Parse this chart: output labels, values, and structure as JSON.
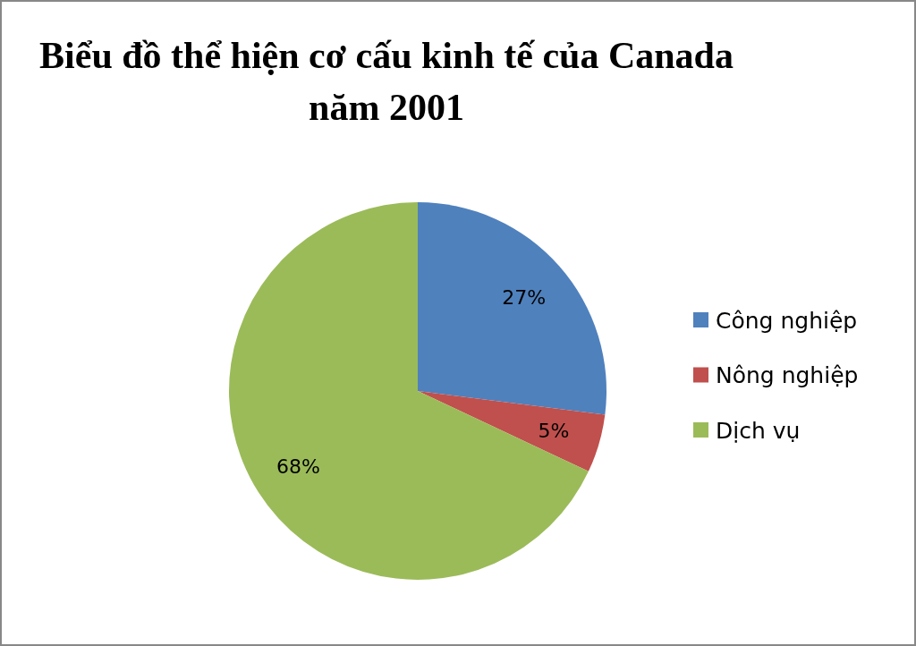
{
  "chart_data": {
    "type": "pie",
    "title": "Biểu đồ thể hiện cơ cấu kinh tế của Canada năm 2001",
    "categories": [
      "Công nghiệp",
      "Nông nghiệp",
      "Dịch vụ"
    ],
    "values": [
      27,
      5,
      68
    ],
    "colors": [
      "#4f81bd",
      "#c0504d",
      "#9bbb59"
    ],
    "value_labels": [
      "27%",
      "5%",
      "68%"
    ],
    "legend": "right"
  }
}
